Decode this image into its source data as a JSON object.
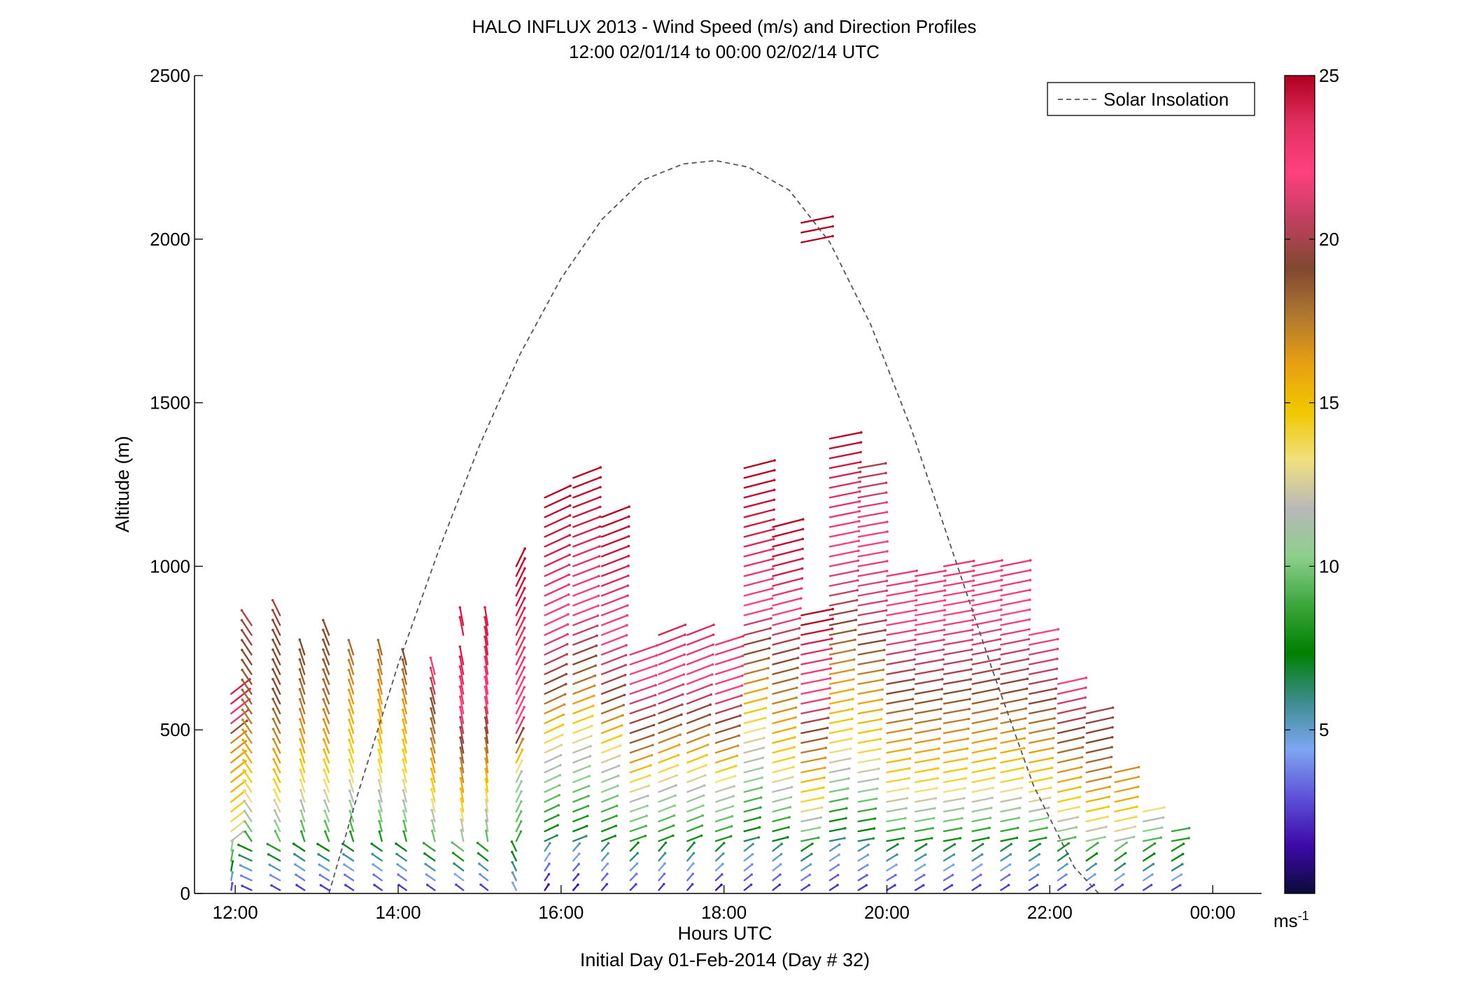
{
  "chart_data": {
    "type": "scatter",
    "subtype": "wind-barb-profile",
    "title": "HALO INFLUX 2013 - Wind Speed (m/s) and Direction Profiles",
    "subtitle": "12:00 02/01/14 to 00:00 02/02/14  UTC",
    "xlabel": "Hours UTC",
    "xlabel2": "Initial Day 01-Feb-2014 (Day # 32)",
    "ylabel": "Altitude (m)",
    "xlim": [
      11.5,
      24.6
    ],
    "ylim": [
      0,
      2500
    ],
    "xticks": [
      12,
      14,
      16,
      18,
      20,
      22,
      24
    ],
    "xtick_labels": [
      "12:00",
      "14:00",
      "16:00",
      "18:00",
      "20:00",
      "22:00",
      "00:00"
    ],
    "yticks": [
      0,
      500,
      1000,
      1500,
      2000,
      2500
    ],
    "ytick_labels": [
      "0",
      "500",
      "1000",
      "1500",
      "2000",
      "2500"
    ],
    "legend": {
      "label": "Solar Insolation",
      "placement": "top-right",
      "style": "dashed",
      "color": "#555555"
    },
    "colorbar": {
      "min": 0,
      "max": 25,
      "ticks": [
        5,
        10,
        15,
        20,
        25
      ],
      "tick_labels": [
        "5",
        "10",
        "15",
        "20",
        "25"
      ],
      "unit_label": "ms",
      "unit_exponent": "-1",
      "colormap": [
        "#0b0b3a",
        "#3d0aa8",
        "#5e52d8",
        "#7ea6f2",
        "#3c8c8c",
        "#008000",
        "#3ca63c",
        "#8ccf8c",
        "#b8b8b8",
        "#f0e080",
        "#f0c800",
        "#e8a010",
        "#b07830",
        "#804830",
        "#c04060",
        "#ff4080",
        "#e03060",
        "#b00020"
      ]
    },
    "solar_insolation": {
      "x": [
        13.15,
        13.5,
        14.0,
        14.5,
        15.0,
        15.5,
        16.0,
        16.5,
        17.0,
        17.5,
        17.9,
        18.3,
        18.8,
        19.3,
        19.8,
        20.3,
        20.8,
        21.3,
        21.8,
        22.3,
        22.6
      ],
      "y": [
        0,
        300,
        700,
        1050,
        1370,
        1650,
        1880,
        2060,
        2180,
        2230,
        2240,
        2220,
        2150,
        1990,
        1740,
        1420,
        1050,
        680,
        330,
        80,
        0
      ]
    },
    "profiles": [
      {
        "t": 11.95,
        "tops": [
          560,
          630
        ],
        "base": 0,
        "dir": 35,
        "speeds": [
          2,
          9,
          13,
          15,
          16,
          17,
          24
        ]
      },
      {
        "t": 12.2,
        "tops": [
          830
        ],
        "base": 0,
        "dir": -20,
        "speeds": [
          2,
          8,
          13,
          16,
          18,
          19,
          20
        ]
      },
      {
        "t": 12.55,
        "tops": [
          870
        ],
        "base": 0,
        "dir": -15,
        "speeds": [
          2,
          9,
          14,
          17,
          19,
          19,
          20
        ]
      },
      {
        "t": 12.85,
        "tops": [
          730
        ],
        "base": 0,
        "dir": -10,
        "speeds": [
          2,
          8,
          13,
          16,
          18,
          19
        ]
      },
      {
        "t": 13.15,
        "tops": [
          730,
          800
        ],
        "base": 0,
        "dir": -12,
        "speeds": [
          2,
          8,
          13,
          16,
          18,
          19
        ]
      },
      {
        "t": 13.45,
        "tops": [
          730
        ],
        "base": 0,
        "dir": -10,
        "speeds": [
          2,
          9,
          14,
          16,
          18
        ]
      },
      {
        "t": 13.8,
        "tops": [
          730
        ],
        "base": 0,
        "dir": -8,
        "speeds": [
          2,
          9,
          14,
          16,
          18
        ]
      },
      {
        "t": 14.1,
        "tops": [
          700
        ],
        "base": 0,
        "dir": -8,
        "speeds": [
          2,
          9,
          14,
          16,
          19
        ]
      },
      {
        "t": 14.45,
        "tops": [
          690
        ],
        "base": 0,
        "dir": -8,
        "speeds": [
          2,
          9,
          14,
          17,
          19,
          22
        ]
      },
      {
        "t": 14.8,
        "tops": [
          700,
          840
        ],
        "base": 0,
        "dir": -6,
        "speeds": [
          2,
          9,
          14,
          17,
          20,
          23,
          24
        ]
      },
      {
        "t": 15.1,
        "tops": [
          720,
          820
        ],
        "base": 0,
        "dir": -5,
        "speeds": [
          2,
          9,
          14,
          18,
          22,
          24
        ]
      },
      {
        "t": 15.45,
        "tops": [
          1010
        ],
        "base": 0,
        "dir": 15,
        "speeds": [
          4,
          9,
          11,
          22,
          23,
          24,
          25
        ]
      },
      {
        "t": 15.8,
        "tops": [
          1230
        ],
        "base": 0,
        "dir": 50,
        "speeds": [
          1,
          8,
          12,
          19,
          22,
          24,
          25
        ]
      },
      {
        "t": 16.15,
        "tops": [
          1290
        ],
        "base": 0,
        "dir": 55,
        "speeds": [
          1,
          8,
          12,
          18,
          22,
          24,
          25
        ]
      },
      {
        "t": 16.5,
        "tops": [
          1160
        ],
        "base": 0,
        "dir": 55,
        "speeds": [
          2,
          8,
          12,
          19,
          22,
          24,
          25
        ]
      },
      {
        "t": 16.85,
        "tops": [
          730
        ],
        "base": 0,
        "dir": 58,
        "speeds": [
          2,
          8,
          12,
          18,
          21,
          23
        ]
      },
      {
        "t": 17.2,
        "tops": [
          800
        ],
        "base": 0,
        "dir": 55,
        "speeds": [
          2,
          8,
          12,
          18,
          22,
          24
        ]
      },
      {
        "t": 17.55,
        "tops": [
          810
        ],
        "base": 0,
        "dir": 55,
        "speeds": [
          2,
          8,
          12,
          18,
          22,
          24
        ]
      },
      {
        "t": 17.9,
        "tops": [
          770
        ],
        "base": 0,
        "dir": 60,
        "speeds": [
          1,
          8,
          12,
          18,
          22,
          23
        ]
      },
      {
        "t": 18.25,
        "tops": [
          1300
        ],
        "base": 0,
        "dir": 65,
        "speeds": [
          2,
          8,
          12,
          17,
          22,
          24,
          25
        ]
      },
      {
        "t": 18.6,
        "tops": [
          1140
        ],
        "base": 0,
        "dir": 65,
        "speeds": [
          2,
          8,
          14,
          17,
          20,
          24,
          25
        ]
      },
      {
        "t": 18.95,
        "tops": [
          830,
          2050
        ],
        "base": 0,
        "dir": 70,
        "speeds": [
          2,
          8,
          14,
          17,
          21,
          23,
          25
        ]
      },
      {
        "t": 19.3,
        "tops": [
          1400
        ],
        "base": 0,
        "dir": 70,
        "speeds": [
          2,
          8,
          14,
          17,
          21,
          23,
          25
        ]
      },
      {
        "t": 19.65,
        "tops": [
          1300
        ],
        "base": 0,
        "dir": 72,
        "speeds": [
          2,
          8,
          14,
          17,
          21,
          22,
          20
        ]
      },
      {
        "t": 20.0,
        "tops": [
          990
        ],
        "base": 0,
        "dir": 72,
        "speeds": [
          2,
          8,
          14,
          17,
          20,
          22,
          23
        ]
      },
      {
        "t": 20.35,
        "tops": [
          980
        ],
        "base": 0,
        "dir": 72,
        "speeds": [
          2,
          8,
          14,
          17,
          20,
          22,
          23
        ]
      },
      {
        "t": 20.7,
        "tops": [
          1000
        ],
        "base": 0,
        "dir": 72,
        "speeds": [
          2,
          8,
          14,
          17,
          20,
          22,
          23
        ]
      },
      {
        "t": 21.05,
        "tops": [
          1010
        ],
        "base": 0,
        "dir": 70,
        "speeds": [
          2,
          8,
          14,
          17,
          20,
          22,
          23
        ]
      },
      {
        "t": 21.4,
        "tops": [
          1010
        ],
        "base": 0,
        "dir": 70,
        "speeds": [
          2,
          8,
          14,
          17,
          20,
          22,
          23
        ]
      },
      {
        "t": 21.75,
        "tops": [
          790
        ],
        "base": 0,
        "dir": 70,
        "speeds": [
          2,
          8,
          14,
          17,
          20,
          22
        ]
      },
      {
        "t": 22.1,
        "tops": [
          650
        ],
        "base": 0,
        "dir": 68,
        "speeds": [
          2,
          8,
          14,
          17,
          20,
          22
        ]
      },
      {
        "t": 22.45,
        "tops": [
          560
        ],
        "base": 0,
        "dir": 68,
        "speeds": [
          2,
          8,
          14,
          17,
          19,
          20
        ]
      },
      {
        "t": 22.8,
        "tops": [
          390
        ],
        "base": 0,
        "dir": 68,
        "speeds": [
          2,
          8,
          13,
          16,
          17
        ]
      },
      {
        "t": 23.15,
        "tops": [
          270
        ],
        "base": 0,
        "dir": 70,
        "speeds": [
          2,
          7,
          10,
          14
        ]
      },
      {
        "t": 23.5,
        "tops": [
          200
        ],
        "base": 0,
        "dir": 72,
        "speeds": [
          2,
          6,
          8,
          9
        ]
      }
    ]
  }
}
